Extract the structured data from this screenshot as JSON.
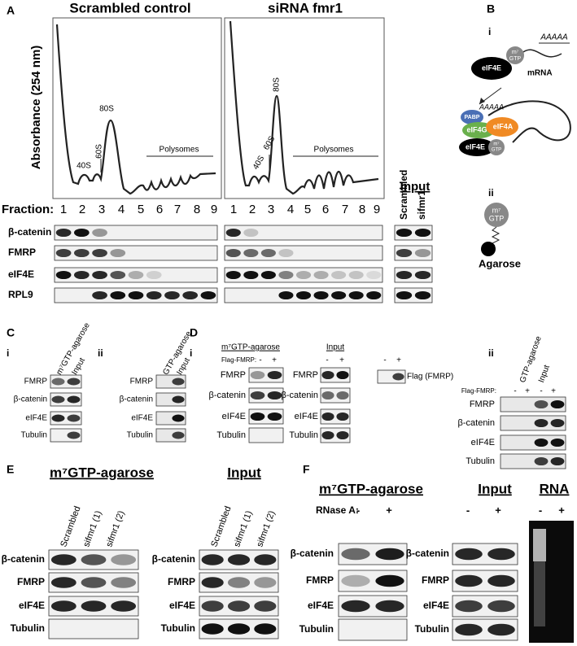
{
  "panel_a": {
    "letter": "A",
    "title_left": "Scrambled control",
    "title_right": "siRNA fmr1",
    "y_axis_label": "Absorbance (254 nm)",
    "peaks_left": [
      "40S",
      "60S",
      "80S",
      "Polysomes"
    ],
    "peaks_right": [
      "40S",
      "60S",
      "80S",
      "Polysomes"
    ],
    "fraction_label": "Fraction:",
    "fractions_left": [
      1,
      2,
      3,
      4,
      5,
      6,
      7,
      8,
      9
    ],
    "fractions_right": [
      1,
      2,
      3,
      4,
      5,
      6,
      7,
      8,
      9
    ],
    "input_title": "Input",
    "input_lanes": [
      "Scrambled",
      "sifmr1"
    ],
    "blot_labels": [
      "β-catenin",
      "FMRP",
      "eIF4E",
      "RPL9"
    ]
  },
  "panel_b": {
    "letter": "B",
    "part_i": "i",
    "free_cap": {
      "poly_a": "AAAAA",
      "cap": "m⁷",
      "cap_base": "GTP",
      "eif4e": "eIF4E",
      "mrna": "mRNA"
    },
    "complex": {
      "pabp": "PABP",
      "poly_a": "AAAAA",
      "eif4g": "eIF4G",
      "eif4a": "eIF4A",
      "eif4e": "eIF4E",
      "cap": "m⁷",
      "cap_base": "GTP"
    },
    "part_ii": "ii",
    "bead": {
      "cap": "m⁷",
      "cap_base": "GTP",
      "agarose": "Agarose"
    }
  },
  "panel_c": {
    "letter": "C",
    "i": {
      "label": "i",
      "lanes": [
        "m⁷GTP-agarose",
        "Input"
      ],
      "blot_labels": [
        "FMRP",
        "β-catenin",
        "eIF4E",
        "Tubulin"
      ]
    },
    "ii": {
      "label": "ii",
      "lanes": [
        "GTP-agarose",
        "Input"
      ],
      "blot_labels": [
        "FMRP",
        "β-catenin",
        "eIF4E",
        "Tubulin"
      ]
    }
  },
  "panel_d": {
    "letter": "D",
    "i": {
      "label": "i",
      "pulldown": {
        "title": "m⁷GTP-agarose",
        "condition": "Flag-FMRP:",
        "lanes": [
          "-",
          "+"
        ],
        "blot_labels": [
          "FMRP",
          "β-catenin",
          "eIF4E",
          "Tubulin"
        ]
      },
      "input": {
        "title": "Input",
        "lanes": [
          "-",
          "+"
        ],
        "blot_labels": [
          "FMRP",
          "β-catenin",
          "eIF4E",
          "Tubulin"
        ]
      },
      "flag": {
        "lanes": [
          "-",
          "+"
        ],
        "label": "Flag (FMRP)"
      }
    },
    "ii": {
      "label": "ii",
      "lanes": [
        "GTP-agarose",
        "Input"
      ],
      "condition": "Flag-FMRP:",
      "conditions": [
        "-",
        "+",
        "-",
        "+"
      ],
      "blot_labels": [
        "FMRP",
        "β-catenin",
        "eIF4E",
        "Tubulin"
      ]
    }
  },
  "panel_e": {
    "letter": "E",
    "pulldown": {
      "title": "m⁷GTP-agarose",
      "lanes": [
        "Scrambled",
        "sifmr1 (1)",
        "sifmr1 (2)"
      ],
      "blot_labels": [
        "β-catenin",
        "FMRP",
        "eIF4E",
        "Tubulin"
      ]
    },
    "input": {
      "title": "Input",
      "lanes": [
        "Scrambled",
        "sifmr1 (1)",
        "sifmr1 (2)"
      ],
      "blot_labels": [
        "β-catenin",
        "FMRP",
        "eIF4E",
        "Tubulin"
      ]
    }
  },
  "panel_f": {
    "letter": "F",
    "pulldown": {
      "title": "m⁷GTP-agarose",
      "condition": "RNase A:",
      "lanes": [
        "-",
        "+"
      ],
      "blot_labels": [
        "β-catenin",
        "FMRP",
        "eIF4E",
        "Tubulin"
      ]
    },
    "input": {
      "title": "Input",
      "lanes": [
        "-",
        "+"
      ],
      "blot_labels": [
        "β-catenin",
        "FMRP",
        "eIF4E",
        "Tubulin"
      ]
    },
    "rna": {
      "title": "RNA",
      "lanes": [
        "-",
        "+"
      ]
    }
  }
}
